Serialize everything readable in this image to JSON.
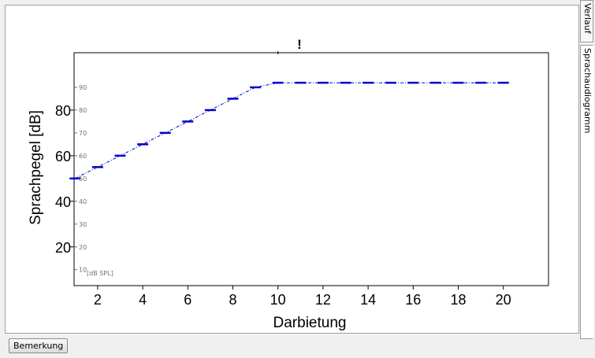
{
  "side_tabs": [
    {
      "label": "Verlauf"
    },
    {
      "label": "Sprachaudiogramm"
    }
  ],
  "button": {
    "label": "Bemerkung"
  },
  "chart_data": {
    "type": "line",
    "xlabel": "Darbietung",
    "ylabel": "Sprachpegel [dB]",
    "xlim": [
      0,
      21
    ],
    "ylim": [
      0,
      95
    ],
    "xticks": [
      2,
      4,
      6,
      8,
      10,
      12,
      14,
      16,
      18,
      20
    ],
    "yticks": [
      20,
      40,
      60,
      80
    ],
    "inner_yticks": [
      10,
      20,
      30,
      40,
      50,
      60,
      70,
      80,
      90
    ],
    "inner_unit": "[dB SPL]",
    "marker_label": "!",
    "marker_x": 10,
    "series": [
      {
        "values": [
          [
            1,
            50
          ],
          [
            2,
            55
          ],
          [
            3,
            60
          ],
          [
            4,
            65
          ],
          [
            5,
            70
          ],
          [
            6,
            75
          ],
          [
            7,
            80
          ],
          [
            8,
            85
          ],
          [
            9,
            90
          ],
          [
            10,
            92
          ],
          [
            11,
            92
          ],
          [
            12,
            92
          ],
          [
            13,
            92
          ],
          [
            14,
            92
          ],
          [
            15,
            92
          ],
          [
            16,
            92
          ],
          [
            17,
            92
          ],
          [
            18,
            92
          ],
          [
            19,
            92
          ],
          [
            20,
            92
          ]
        ]
      }
    ],
    "colors": {
      "series": "#0000cc",
      "inner_tick": "#707070"
    }
  }
}
